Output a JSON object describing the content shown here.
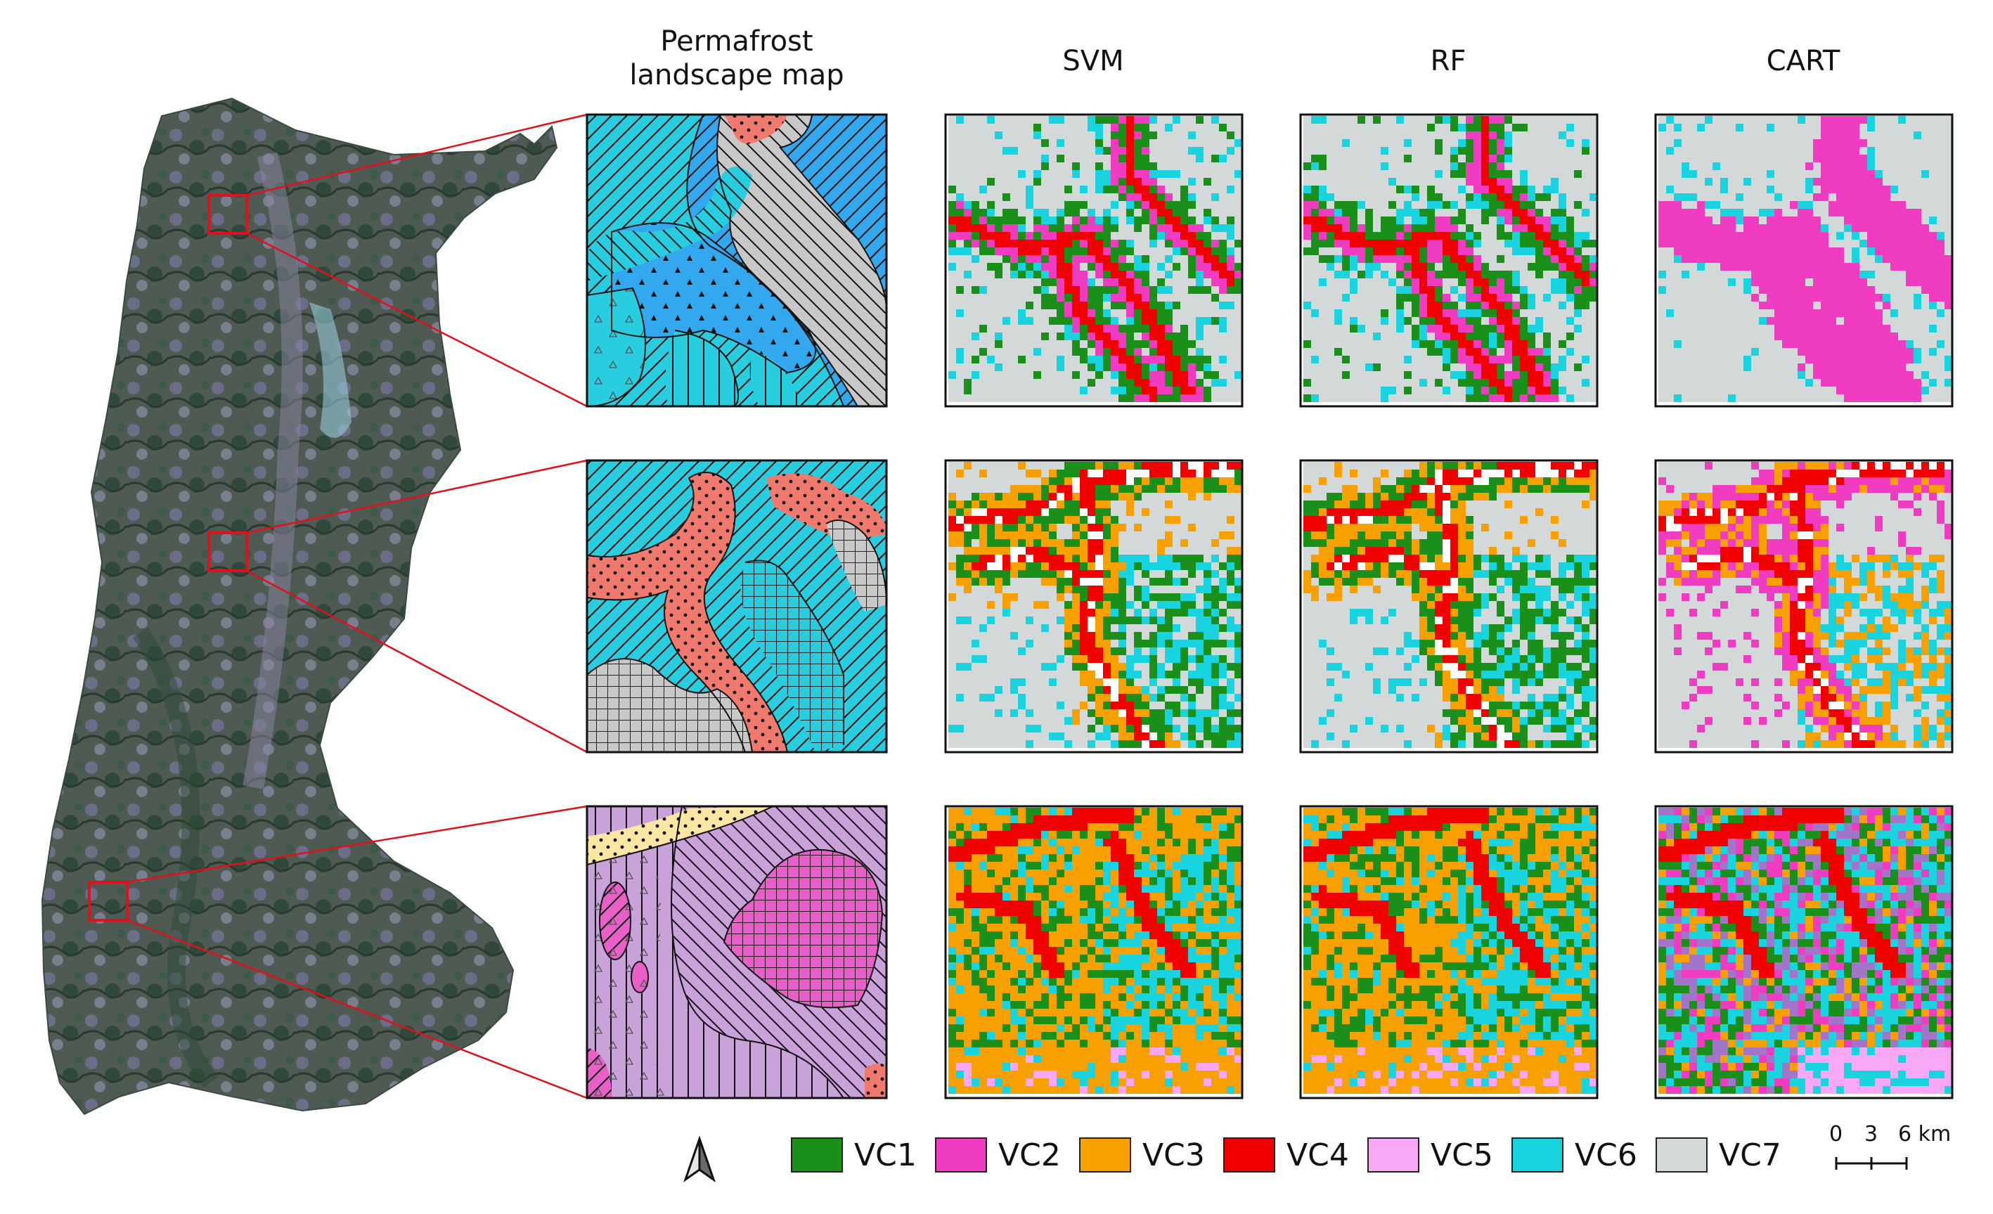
{
  "column_titles": {
    "permafrost_line1": "Permafrost",
    "permafrost_line2": "landscape map",
    "svm": "SVM",
    "rf": "RF",
    "cart": "CART"
  },
  "legend": [
    {
      "label": "VC1",
      "color": "#1a8f1a"
    },
    {
      "label": "VC2",
      "color": "#f03cc0"
    },
    {
      "label": "VC3",
      "color": "#f7a000"
    },
    {
      "label": "VC4",
      "color": "#f00000"
    },
    {
      "label": "VC5",
      "color": "#f9a8f5"
    },
    {
      "label": "VC6",
      "color": "#19d3de"
    },
    {
      "label": "VC7",
      "color": "#d3d9d9"
    }
  ],
  "scale_bar": {
    "labels": [
      "0",
      "3",
      "6 km"
    ]
  },
  "north_arrow": {
    "icon": "north-arrow-icon"
  },
  "colors": {
    "zoom_box": "#e0101c",
    "permafrost_cyan": "#29cde0",
    "permafrost_blue": "#33a8ee",
    "permafrost_salmon": "#f07a6e",
    "permafrost_grey": "#c8c8c8",
    "permafrost_purple": "#c9a2d9",
    "permafrost_pink": "#e95fc8",
    "permafrost_cream": "#fbe6a4"
  }
}
